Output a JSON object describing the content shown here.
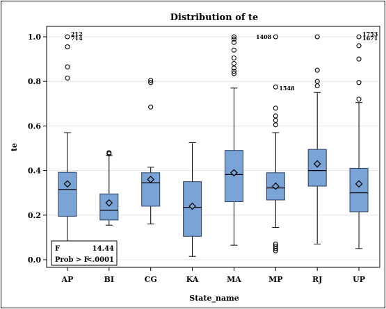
{
  "chart_data": {
    "type": "boxplot",
    "title": "Distribution of te",
    "xlabel": "State_name",
    "ylabel": "te",
    "ylim": [
      0,
      1.0
    ],
    "yticks": [
      0.0,
      0.2,
      0.4,
      0.6,
      0.8,
      1.0
    ],
    "grid": true,
    "categories": [
      "AP",
      "BI",
      "CG",
      "KA",
      "MA",
      "MP",
      "RJ",
      "UP"
    ],
    "boxes": [
      {
        "category": "AP",
        "min": 0.07,
        "q1": 0.195,
        "median": 0.315,
        "q3": 0.392,
        "max": 0.57,
        "mean": 0.34,
        "outliers": [
          0.815,
          0.865,
          0.955,
          1.0
        ],
        "outlier_labels": [
          {
            "y": 1.0,
            "text": "212"
          },
          {
            "y": 1.0,
            "text": "714"
          }
        ]
      },
      {
        "category": "BI",
        "min": 0.155,
        "q1": 0.178,
        "median": 0.222,
        "q3": 0.295,
        "max": 0.468,
        "mean": 0.255,
        "outliers": [
          0.475,
          0.48
        ],
        "outlier_labels": []
      },
      {
        "category": "CG",
        "min": 0.16,
        "q1": 0.24,
        "median": 0.345,
        "q3": 0.39,
        "max": 0.415,
        "mean": 0.36,
        "outliers": [
          0.685,
          0.795,
          0.805
        ],
        "outlier_labels": []
      },
      {
        "category": "KA",
        "min": 0.015,
        "q1": 0.105,
        "median": 0.235,
        "q3": 0.35,
        "max": 0.525,
        "mean": 0.24,
        "outliers": [],
        "outlier_labels": []
      },
      {
        "category": "MA",
        "min": 0.065,
        "q1": 0.26,
        "median": 0.382,
        "q3": 0.49,
        "max": 0.77,
        "mean": 0.39,
        "outliers": [
          0.835,
          0.845,
          0.86,
          0.88,
          0.905,
          0.94,
          0.975,
          0.99,
          1.0
        ],
        "outlier_labels": []
      },
      {
        "category": "MP",
        "min": 0.145,
        "q1": 0.268,
        "median": 0.322,
        "q3": 0.39,
        "max": 0.57,
        "mean": 0.33,
        "outliers": [
          0.04,
          0.05,
          0.06,
          0.07,
          0.605,
          0.625,
          0.645,
          0.68,
          0.775,
          1.0
        ],
        "outlier_labels": [
          {
            "y": 1.0,
            "text": "1408"
          },
          {
            "y": 0.775,
            "text": "1548"
          }
        ]
      },
      {
        "category": "RJ",
        "min": 0.07,
        "q1": 0.33,
        "median": 0.4,
        "q3": 0.495,
        "max": 0.75,
        "mean": 0.43,
        "outliers": [
          0.78,
          0.8,
          0.85,
          1.0
        ],
        "outlier_labels": []
      },
      {
        "category": "UP",
        "min": 0.05,
        "q1": 0.215,
        "median": 0.3,
        "q3": 0.41,
        "max": 0.705,
        "mean": 0.34,
        "outliers": [
          0.72,
          0.795,
          0.9,
          0.96,
          1.0
        ],
        "outlier_labels": [
          {
            "y": 1.0,
            "text": "1753"
          },
          {
            "y": 1.0,
            "text": "1671"
          }
        ]
      }
    ],
    "stats": {
      "f_label": "F",
      "f_value": "14.44",
      "p_label": "Prob > F",
      "p_value": "<.0001"
    }
  }
}
